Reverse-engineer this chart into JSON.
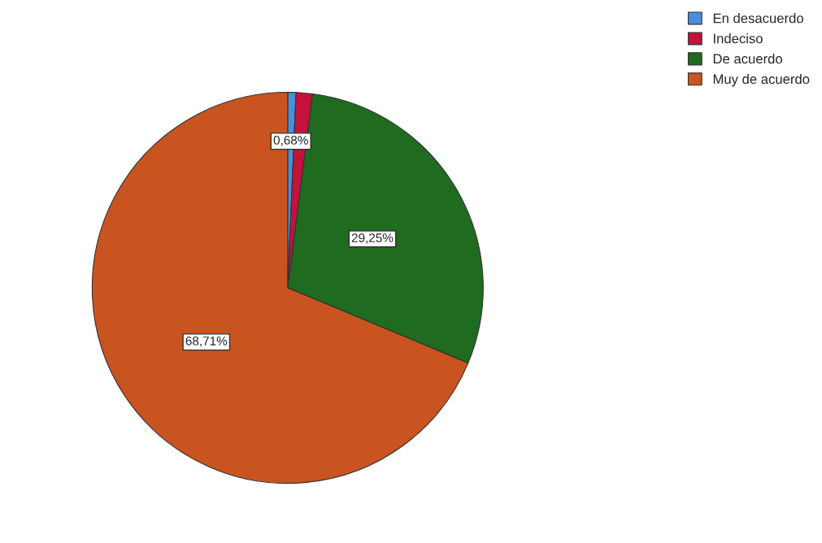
{
  "chart_data": {
    "type": "pie",
    "categories": [
      "En desacuerdo",
      "Indeciso",
      "De acuerdo",
      "Muy de acuerdo"
    ],
    "values": [
      0.68,
      1.36,
      29.25,
      68.71
    ],
    "value_labels": [
      "0,68%",
      null,
      "29,25%",
      "68,71%"
    ],
    "colors": [
      "#4a8fdc",
      "#c4123a",
      "#1f6b1f",
      "#c9541f"
    ],
    "legend": "top right"
  }
}
